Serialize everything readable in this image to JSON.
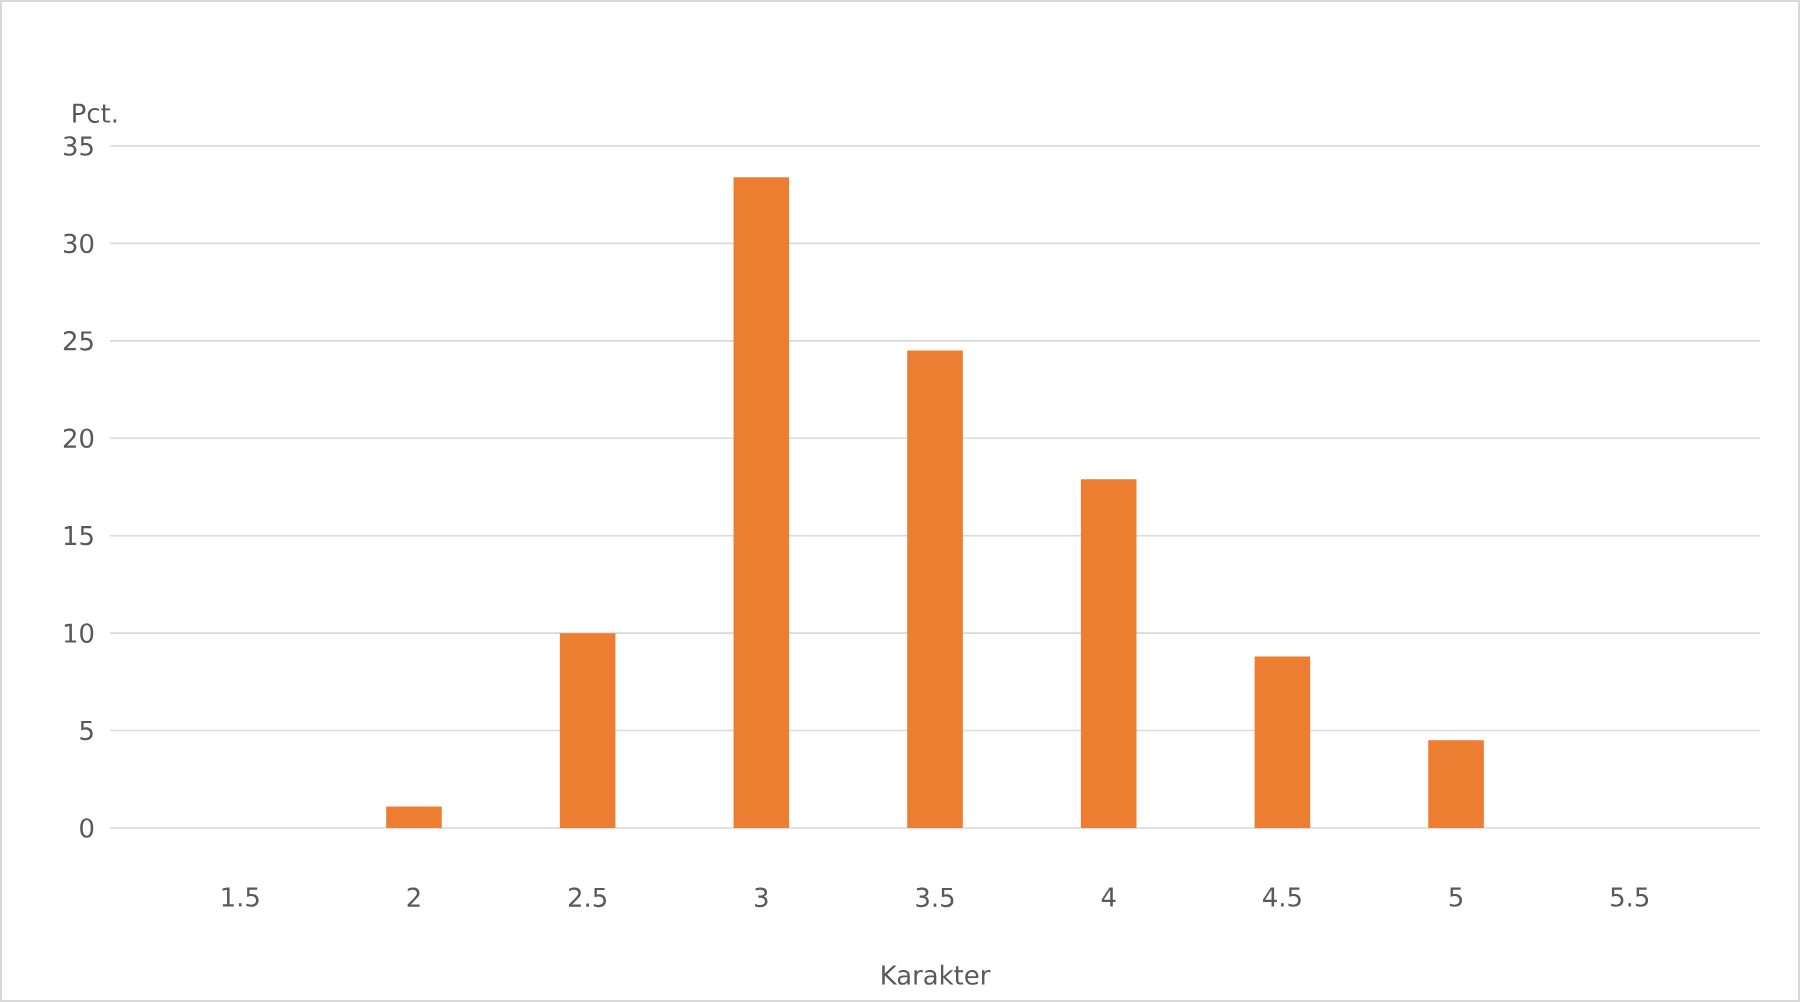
{
  "chart_data": {
    "type": "bar",
    "ylabel": "Pct.",
    "xlabel": "Karakter",
    "categories": [
      "1.5",
      "2",
      "2.5",
      "3",
      "3.5",
      "4",
      "4.5",
      "5",
      "5.5"
    ],
    "values": [
      0,
      1.1,
      10.0,
      33.4,
      24.5,
      17.9,
      8.8,
      4.5,
      0
    ],
    "color": "#ed7d31",
    "ylim": [
      0,
      35
    ],
    "yticks": [
      0,
      5,
      10,
      15,
      20,
      25,
      30,
      35
    ],
    "grid": "y"
  }
}
